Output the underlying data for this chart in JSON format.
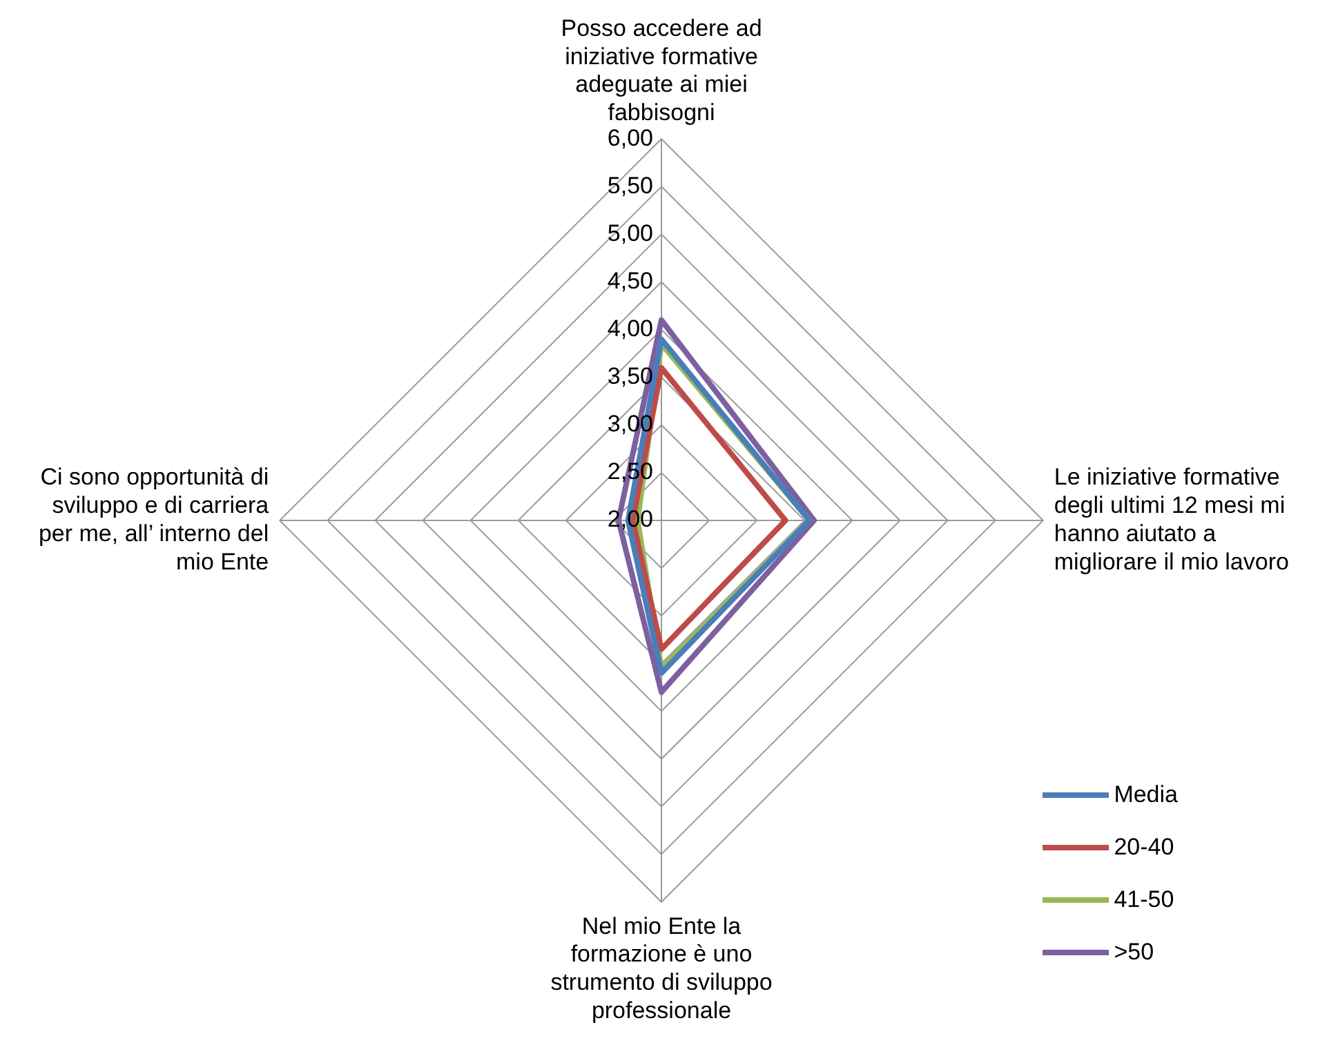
{
  "chart_data": {
    "type": "radar",
    "categories": [
      "Posso accedere ad iniziative formative adeguate ai miei fabbisogni",
      "Le iniziative formative degli ultimi 12 mesi mi hanno aiutato a migliorare il mio lavoro",
      "Nel mio Ente la formazione è uno strumento di sviluppo professionale",
      "Ci sono opportunità di sviluppo e di carriera per me, all’ interno del mio Ente"
    ],
    "series": [
      {
        "name": "Media",
        "color": "#4a7ebb",
        "values": [
          3.9,
          3.55,
          3.6,
          2.35
        ]
      },
      {
        "name": "20-40",
        "color": "#be4b48",
        "values": [
          3.6,
          3.3,
          3.35,
          2.3
        ]
      },
      {
        "name": "41-50",
        "color": "#98b954",
        "values": [
          3.85,
          3.55,
          3.55,
          2.25
        ]
      },
      {
        "name": ">50",
        "color": "#7d60a0",
        "values": [
          4.1,
          3.6,
          3.8,
          2.45
        ]
      }
    ],
    "ylim": [
      2,
      6
    ],
    "yticks": [
      {
        "value": 2,
        "label": "2,00"
      },
      {
        "value": 2.5,
        "label": "2,50"
      },
      {
        "value": 3,
        "label": "3,00"
      },
      {
        "value": 3.5,
        "label": "3,50"
      },
      {
        "value": 4,
        "label": "4,00"
      },
      {
        "value": 4.5,
        "label": "4,50"
      },
      {
        "value": 5,
        "label": "5,00"
      },
      {
        "value": 5.5,
        "label": "5,50"
      },
      {
        "value": 6,
        "label": "6,00"
      }
    ],
    "grid": true,
    "legend": "bottom right",
    "marker": "none"
  }
}
